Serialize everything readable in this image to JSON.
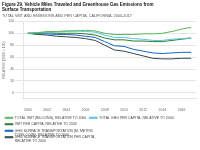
{
  "chart_data": {
    "type": "line",
    "title": "Figure 29. Vehicle Miles Traveled and Greenhouse Gas Emissions from\nSurface Transportation",
    "subtitle": "TOTAL VMT AND EMISSIONS AND PER CAPITA, CALIFORNIA, 2000-2017",
    "ylabel": "RELATIVE (2000 = 100)",
    "x": [
      2000,
      2001,
      2002,
      2003,
      2004,
      2005,
      2006,
      2007,
      2008,
      2009,
      2010,
      2011,
      2012,
      2013,
      2014,
      2015,
      2016,
      2017
    ],
    "series": [
      {
        "name": "TOTAL VMT (BILLIONS), RELATIVE TO 2000",
        "color": "#5CB85C",
        "values": [
          100,
          101,
          103,
          103,
          104,
          104,
          105,
          104,
          100,
          98,
          98,
          98,
          99,
          99,
          100,
          103,
          107,
          110
        ]
      },
      {
        "name": "TOTAL GHG PER CAPITA, RELATIVE TO 2000",
        "color": "#5BC0DE",
        "values": [
          100,
          101,
          101,
          102,
          103,
          104,
          103,
          102,
          97,
          93,
          93,
          91,
          90,
          88,
          88,
          90,
          91,
          92
        ]
      },
      {
        "name": "VMT PER CAPITA, RELATIVE TO 2000",
        "color": "#2E7D32",
        "values": [
          100,
          100,
          101,
          100,
          100,
          100,
          99,
          97,
          92,
          89,
          89,
          87,
          87,
          86,
          86,
          88,
          90,
          92
        ]
      },
      {
        "name": "GHG SURFACE TRANSPORTATION (M. METRIC\nTONS CO2E), RELATIVE TO 2000",
        "color": "#1565C0",
        "values": [
          100,
          99,
          99,
          98,
          98,
          97,
          95,
          93,
          86,
          79,
          78,
          73,
          70,
          67,
          66,
          67,
          68,
          68
        ]
      },
      {
        "name": "GHG SURFACE TRANSPORTATION PER CAPITA,\nRELATIVE TO 2000",
        "color": "#37474F",
        "values": [
          100,
          98,
          97,
          95,
          94,
          93,
          91,
          88,
          80,
          72,
          70,
          66,
          62,
          58,
          57,
          57,
          58,
          58
        ]
      }
    ],
    "xlim": [
      1999.5,
      2017.5
    ],
    "xticks": [
      2000,
      2002,
      2004,
      2006,
      2008,
      2010,
      2012,
      2014,
      2016
    ],
    "ylim": [
      -10,
      120
    ],
    "yticks": [
      0,
      20,
      40,
      60,
      80,
      100,
      120
    ],
    "grid": "y",
    "legend": "lower left"
  }
}
